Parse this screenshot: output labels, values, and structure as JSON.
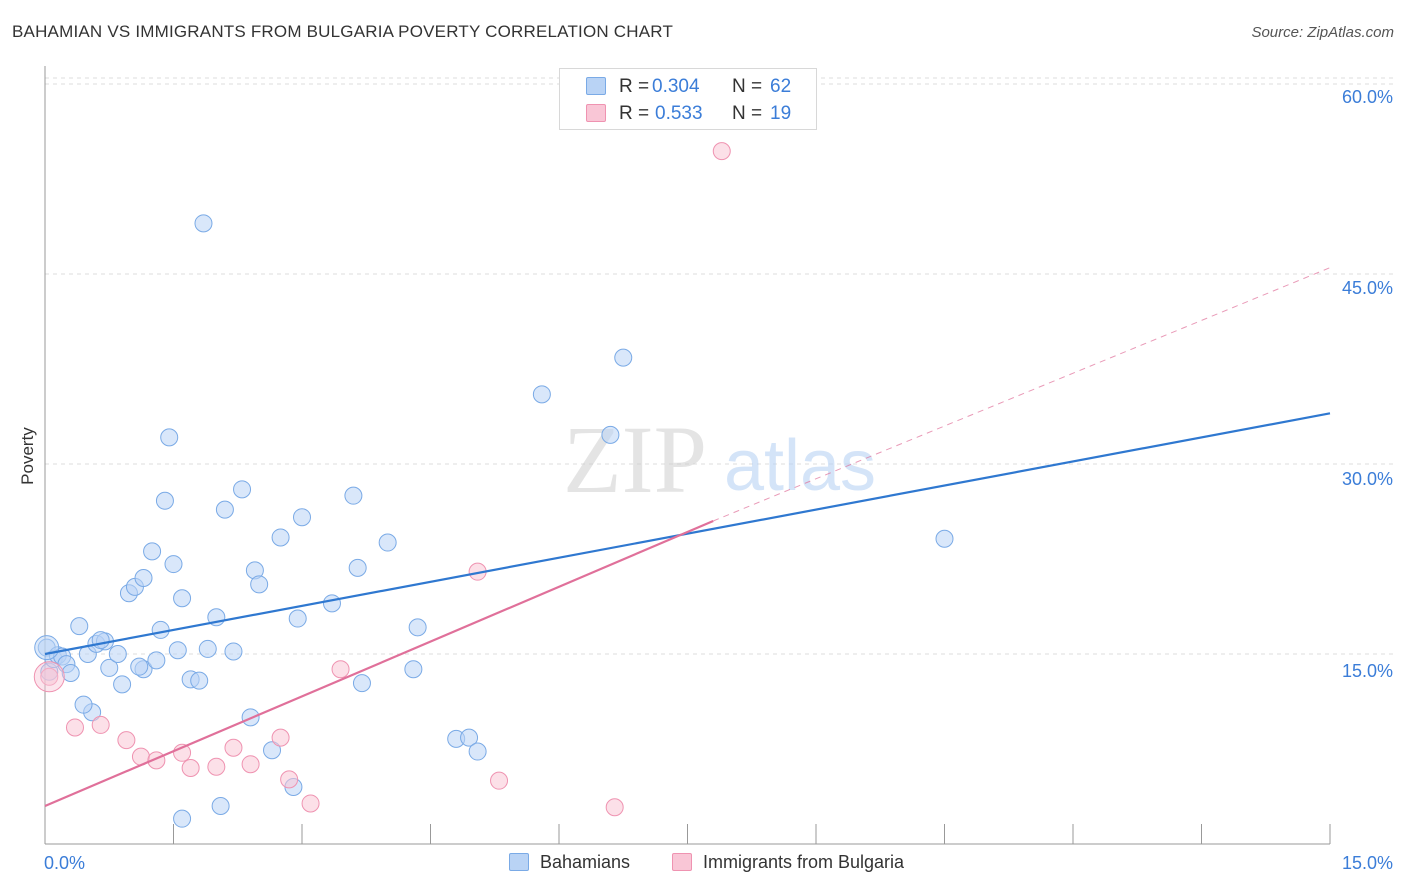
{
  "title": "BAHAMIAN VS IMMIGRANTS FROM BULGARIA POVERTY CORRELATION CHART",
  "source": "Source: ZipAtlas.com",
  "watermark": {
    "zip": "ZIP",
    "atlas": "atlas"
  },
  "colors": {
    "blue_fill": "#b9d3f5",
    "blue_stroke": "#7aaae6",
    "blue_line": "#2f78d0",
    "pink_fill": "#f9c6d6",
    "pink_stroke": "#ef93b1",
    "pink_line": "#e0709a",
    "tick_text": "#3b7dd8",
    "grid": "#dcdcdc"
  },
  "stats": [
    {
      "r_label": "R =",
      "r_value": "0.304",
      "n_label": "N =",
      "n_value": "62"
    },
    {
      "r_label": "R =",
      "r_value": "0.533",
      "n_label": "N =",
      "n_value": "19"
    }
  ],
  "chart_data": {
    "type": "scatter",
    "title": "BAHAMIAN VS IMMIGRANTS FROM BULGARIA POVERTY CORRELATION CHART",
    "xlabel": "",
    "ylabel": "Poverty",
    "xlim": [
      0,
      15
    ],
    "ylim": [
      0,
      62.5
    ],
    "x_tick_labels": [
      "0.0%",
      "15.0%"
    ],
    "y_ticks": [
      15,
      30,
      45,
      60
    ],
    "y_tick_labels": [
      "15.0%",
      "30.0%",
      "45.0%",
      "60.0%"
    ],
    "legend": [
      "Bahamians",
      "Immigrants from Bulgaria"
    ],
    "series": [
      {
        "name": "Bahamians",
        "points": [
          [
            0.02,
            15.5
          ],
          [
            0.05,
            13.6
          ],
          [
            0.1,
            14.6
          ],
          [
            0.15,
            14.9
          ],
          [
            0.2,
            14.8
          ],
          [
            0.25,
            14.2
          ],
          [
            0.4,
            17.2
          ],
          [
            0.5,
            15.0
          ],
          [
            0.55,
            10.4
          ],
          [
            0.6,
            15.8
          ],
          [
            0.7,
            16.0
          ],
          [
            0.75,
            13.9
          ],
          [
            0.85,
            15.0
          ],
          [
            0.9,
            12.6
          ],
          [
            0.98,
            19.8
          ],
          [
            1.05,
            20.3
          ],
          [
            1.15,
            21.0
          ],
          [
            1.15,
            13.8
          ],
          [
            1.25,
            23.1
          ],
          [
            1.3,
            14.5
          ],
          [
            1.35,
            16.9
          ],
          [
            1.4,
            27.1
          ],
          [
            1.45,
            32.1
          ],
          [
            1.5,
            22.1
          ],
          [
            1.55,
            15.3
          ],
          [
            1.6,
            19.4
          ],
          [
            1.7,
            13.0
          ],
          [
            1.8,
            12.9
          ],
          [
            1.85,
            49.0
          ],
          [
            1.9,
            15.4
          ],
          [
            2.0,
            17.9
          ],
          [
            2.05,
            3.0
          ],
          [
            2.1,
            26.4
          ],
          [
            2.2,
            15.2
          ],
          [
            2.3,
            28.0
          ],
          [
            2.4,
            10.0
          ],
          [
            2.45,
            21.6
          ],
          [
            2.5,
            20.5
          ],
          [
            2.65,
            7.4
          ],
          [
            2.75,
            24.2
          ],
          [
            2.9,
            4.5
          ],
          [
            2.95,
            17.8
          ],
          [
            3.0,
            25.8
          ],
          [
            3.35,
            19.0
          ],
          [
            3.6,
            27.5
          ],
          [
            3.65,
            21.8
          ],
          [
            3.7,
            12.7
          ],
          [
            4.0,
            23.8
          ],
          [
            4.3,
            13.8
          ],
          [
            4.35,
            17.1
          ],
          [
            4.8,
            8.3
          ],
          [
            4.95,
            8.4
          ],
          [
            5.05,
            7.3
          ],
          [
            5.8,
            35.5
          ],
          [
            6.6,
            32.3
          ],
          [
            6.75,
            38.4
          ],
          [
            10.5,
            24.1
          ],
          [
            1.1,
            14.0
          ],
          [
            0.3,
            13.5
          ],
          [
            0.65,
            16.1
          ],
          [
            1.6,
            2.0
          ],
          [
            0.45,
            11.0
          ]
        ]
      },
      {
        "name": "Immigrants from Bulgaria",
        "points": [
          [
            0.05,
            13.2
          ],
          [
            0.35,
            9.2
          ],
          [
            0.65,
            9.4
          ],
          [
            0.95,
            8.2
          ],
          [
            1.12,
            6.9
          ],
          [
            1.3,
            6.6
          ],
          [
            1.6,
            7.2
          ],
          [
            1.7,
            6.0
          ],
          [
            2.0,
            6.1
          ],
          [
            2.2,
            7.6
          ],
          [
            2.4,
            6.3
          ],
          [
            2.75,
            8.4
          ],
          [
            2.85,
            5.1
          ],
          [
            3.1,
            3.2
          ],
          [
            3.45,
            13.8
          ],
          [
            5.05,
            21.5
          ],
          [
            5.3,
            5.0
          ],
          [
            6.65,
            2.9
          ],
          [
            7.9,
            54.7
          ]
        ]
      }
    ],
    "trendlines": [
      {
        "series": "Bahamians",
        "start": [
          0,
          15.0
        ],
        "end": [
          15,
          34.0
        ],
        "style": "solid"
      },
      {
        "series": "Immigrants from Bulgaria",
        "start": [
          0,
          3.0
        ],
        "end": [
          7.8,
          25.5
        ],
        "style": "solid",
        "extended_to": [
          15,
          45.5
        ],
        "extended_style": "dashed"
      }
    ]
  }
}
